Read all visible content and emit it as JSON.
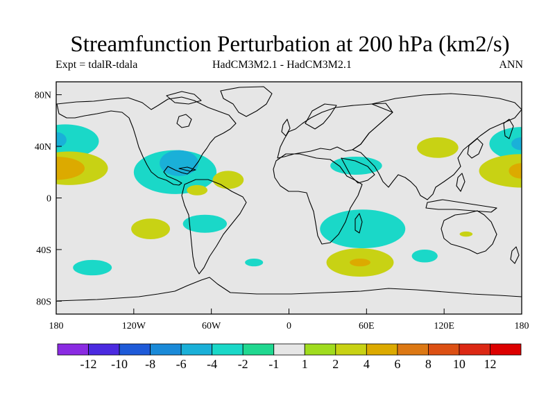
{
  "title": "Streamfunction Perturbation at 200 hPa (km2/s)",
  "subtitle_left": "Expt = tdalR-tdala",
  "subtitle_center": "HadCM3M2.1 - HadCM3M2.1",
  "subtitle_right": "ANN",
  "map": {
    "projection": "cylindrical equidistant",
    "lon_range": [
      -180,
      180
    ],
    "lat_range": [
      -90,
      90
    ],
    "x_ticks": [
      "180",
      "120W",
      "60W",
      "0",
      "60E",
      "120E",
      "180"
    ],
    "y_ticks": [
      "80N",
      "40N",
      "0",
      "40S",
      "80S"
    ],
    "colors": {
      "land_background": "#e6e6e6",
      "coastline": "#000000"
    }
  },
  "contour_levels": [
    "-12",
    "-10",
    "-8",
    "-6",
    "-4",
    "-2",
    "-1",
    "1",
    "2",
    "4",
    "6",
    "8",
    "10",
    "12"
  ],
  "colorbar_colors": [
    "#8a2be2",
    "#4b2ae0",
    "#1e5ad8",
    "#1a8ad8",
    "#1ab0d8",
    "#1ad8c8",
    "#20d890",
    "#e6e6e6",
    "#a0dc1e",
    "#c8d214",
    "#dcaa00",
    "#dc7814",
    "#dc5014",
    "#dc2814",
    "#dc0000"
  ],
  "features": [
    {
      "lon": -173,
      "lat": 44,
      "rx_deg": 26,
      "ry_deg": 13,
      "level": "-2"
    },
    {
      "lon": -180,
      "lat": 45,
      "rx_deg": 8,
      "ry_deg": 6,
      "level": "-4"
    },
    {
      "lon": -170,
      "lat": 23,
      "rx_deg": 30,
      "ry_deg": 13,
      "level": "2"
    },
    {
      "lon": -180,
      "lat": 23,
      "rx_deg": 22,
      "ry_deg": 9,
      "level": "4"
    },
    {
      "lon": -88,
      "lat": 20,
      "rx_deg": 32,
      "ry_deg": 17,
      "level": "-2"
    },
    {
      "lon": -85,
      "lat": 27,
      "rx_deg": 15,
      "ry_deg": 10,
      "level": "-4"
    },
    {
      "lon": -71,
      "lat": 6,
      "rx_deg": 8,
      "ry_deg": 4,
      "level": "2"
    },
    {
      "lon": -47,
      "lat": 14,
      "rx_deg": 12,
      "ry_deg": 7,
      "level": "2"
    },
    {
      "lon": -107,
      "lat": -24,
      "rx_deg": 15,
      "ry_deg": 8,
      "level": "2"
    },
    {
      "lon": -65,
      "lat": -20,
      "rx_deg": 17,
      "ry_deg": 7,
      "level": "-2"
    },
    {
      "lon": -152,
      "lat": -54,
      "rx_deg": 15,
      "ry_deg": 6,
      "level": "-2"
    },
    {
      "lon": -27,
      "lat": -50,
      "rx_deg": 7,
      "ry_deg": 3,
      "level": "-2"
    },
    {
      "lon": 57,
      "lat": -24,
      "rx_deg": 33,
      "ry_deg": 15,
      "level": "-2"
    },
    {
      "lon": 55,
      "lat": -50,
      "rx_deg": 26,
      "ry_deg": 11,
      "level": "2"
    },
    {
      "lon": 55,
      "lat": -50,
      "rx_deg": 8,
      "ry_deg": 3,
      "level": "4"
    },
    {
      "lon": 52,
      "lat": 25,
      "rx_deg": 20,
      "ry_deg": 7,
      "level": "-2"
    },
    {
      "lon": 115,
      "lat": 39,
      "rx_deg": 16,
      "ry_deg": 8,
      "level": "2"
    },
    {
      "lon": 105,
      "lat": -45,
      "rx_deg": 10,
      "ry_deg": 5,
      "level": "-2"
    },
    {
      "lon": 137,
      "lat": -28,
      "rx_deg": 5,
      "ry_deg": 2,
      "level": "2"
    },
    {
      "lon": 180,
      "lat": 42,
      "rx_deg": 25,
      "ry_deg": 13,
      "level": "-2"
    },
    {
      "lon": 180,
      "lat": 42,
      "rx_deg": 8,
      "ry_deg": 5,
      "level": "-4"
    },
    {
      "lon": 180,
      "lat": 21,
      "rx_deg": 33,
      "ry_deg": 13,
      "level": "2"
    },
    {
      "lon": 180,
      "lat": 21,
      "rx_deg": 10,
      "ry_deg": 6,
      "level": "4"
    }
  ]
}
